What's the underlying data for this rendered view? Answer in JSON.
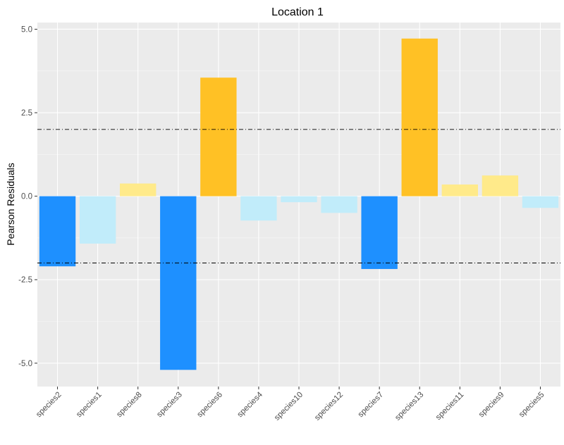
{
  "chart_data": {
    "type": "bar",
    "title": "Location 1",
    "xlabel": "",
    "ylabel": "Pearson Residuals",
    "categories": [
      "species2",
      "species1",
      "species8",
      "species3",
      "species6",
      "species4",
      "species10",
      "species12",
      "species7",
      "species13",
      "species11",
      "species9",
      "species5"
    ],
    "values": [
      -2.1,
      -1.42,
      0.38,
      -5.2,
      3.55,
      -0.73,
      -0.18,
      -0.5,
      -2.18,
      4.72,
      0.35,
      0.62,
      -0.35
    ],
    "fill_colors": [
      "#1E90FF",
      "#C1ECFA",
      "#FFEA8A",
      "#1E90FF",
      "#FFC125",
      "#C1ECFA",
      "#C1ECFA",
      "#C1ECFA",
      "#1E90FF",
      "#FFC125",
      "#FFEA8A",
      "#FFEA8A",
      "#C1ECFA"
    ],
    "ylim": [
      -5.7,
      5.2
    ],
    "yticks": [
      -5.0,
      -2.5,
      0.0,
      2.5,
      5.0
    ],
    "ytick_labels": [
      "-5.0",
      "-2.5",
      "0.0",
      "2.5",
      "5.0"
    ],
    "reference_lines": [
      2,
      -2
    ],
    "reference_line_style": "dotdash",
    "grid": true,
    "panel_background": "#EBEBEB",
    "legend": "none"
  }
}
